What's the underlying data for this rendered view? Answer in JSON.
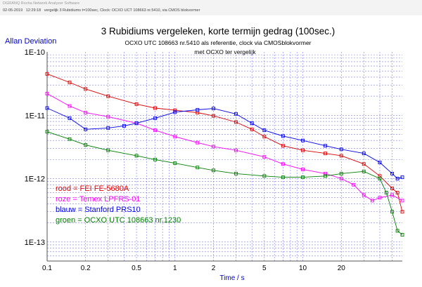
{
  "app_header": {
    "app_name": "DGRANQ Rocha Network Analyzer Software",
    "date": "02-05-2019",
    "time": "12:29:18",
    "info": "vergelijk 3 Rubidiums t=100sec, Clock: OCXO UCT 108663 nr.5410, via CMOS blokvormer"
  },
  "chart_data": {
    "type": "line",
    "title": "3 Rubidiums vergeleken, korte termijn gedrag (100sec.)",
    "subtitle_1": "OCXO UTC 108663 nr.5410 als referentie,  clock via CMOSblokvormer",
    "subtitle_2": "met OCXO ter vergelijk",
    "ylabel": "Allan Deviation",
    "xlabel": "Time / s",
    "xscale": "log",
    "yscale": "log",
    "xlim": [
      0.1,
      60
    ],
    "ylim": [
      5e-14,
      1e-10
    ],
    "grid": true,
    "x_ticks": [
      {
        "value": 0.1,
        "label": "0.1"
      },
      {
        "value": 0.2,
        "label": "0.2"
      },
      {
        "value": 0.5,
        "label": "0.5"
      },
      {
        "value": 1,
        "label": "1"
      },
      {
        "value": 2,
        "label": "2"
      },
      {
        "value": 5,
        "label": "5"
      },
      {
        "value": 10,
        "label": "10"
      },
      {
        "value": 20,
        "label": "20"
      }
    ],
    "y_ticks": [
      {
        "value": 1e-10,
        "label": "1E-10"
      },
      {
        "value": 1e-11,
        "label": "1E-11"
      },
      {
        "value": 1e-12,
        "label": "1E-12"
      },
      {
        "value": 1e-13,
        "label": "1E-13"
      }
    ],
    "legend_placement": "bottom-left",
    "series": [
      {
        "name": "rood  = FEI FE-5680A",
        "color": "#e00000",
        "points": [
          [
            0.1,
            4.5e-11
          ],
          [
            0.15,
            3.3e-11
          ],
          [
            0.2,
            2.6e-11
          ],
          [
            0.3,
            2e-11
          ],
          [
            0.5,
            1.5e-11
          ],
          [
            0.7,
            1.3e-11
          ],
          [
            1,
            1.2e-11
          ],
          [
            1.5,
            1.1e-11
          ],
          [
            2,
            9.8e-12
          ],
          [
            3,
            7.8e-12
          ],
          [
            4,
            6e-12
          ],
          [
            5,
            4.6e-12
          ],
          [
            7,
            3.3e-12
          ],
          [
            10,
            2.8e-12
          ],
          [
            15,
            2.5e-12
          ],
          [
            20,
            2.3e-12
          ],
          [
            30,
            1.7e-12
          ],
          [
            40,
            1.1e-12
          ],
          [
            50,
            7e-13
          ],
          [
            55,
            6e-13
          ],
          [
            60,
            3e-13
          ]
        ]
      },
      {
        "name": "roze  = Temex LPFRS-01",
        "color": "#ff00ff",
        "points": [
          [
            0.1,
            2.2e-11
          ],
          [
            0.15,
            1.4e-11
          ],
          [
            0.2,
            1.1e-11
          ],
          [
            0.3,
            9.5e-12
          ],
          [
            0.5,
            7.5e-12
          ],
          [
            0.7,
            5.8e-12
          ],
          [
            1,
            4.6e-12
          ],
          [
            1.5,
            3.7e-12
          ],
          [
            2,
            3.2e-12
          ],
          [
            3,
            2.8e-12
          ],
          [
            5,
            2.2e-12
          ],
          [
            7,
            1.7e-12
          ],
          [
            10,
            1.4e-12
          ],
          [
            15,
            1.2e-12
          ],
          [
            20,
            1e-12
          ],
          [
            25,
            8e-13
          ],
          [
            30,
            5.5e-13
          ],
          [
            35,
            4.5e-13
          ],
          [
            40,
            5e-13
          ],
          [
            50,
            5.5e-13
          ],
          [
            60,
            4.5e-13
          ]
        ]
      },
      {
        "name": "blauw = Stanford PRS10",
        "color": "#0000ee",
        "points": [
          [
            0.1,
            1.3e-11
          ],
          [
            0.15,
            9e-12
          ],
          [
            0.2,
            6e-12
          ],
          [
            0.3,
            6.3e-12
          ],
          [
            0.4,
            6.8e-12
          ],
          [
            0.5,
            7.5e-12
          ],
          [
            0.7,
            9e-12
          ],
          [
            1,
            1.12e-11
          ],
          [
            1.5,
            1.22e-11
          ],
          [
            2,
            1.28e-11
          ],
          [
            3,
            1.05e-11
          ],
          [
            4,
            7.5e-12
          ],
          [
            5,
            5.8e-12
          ],
          [
            7,
            4.7e-12
          ],
          [
            10,
            4e-12
          ],
          [
            15,
            3.3e-12
          ],
          [
            20,
            2.9e-12
          ],
          [
            30,
            2.5e-12
          ],
          [
            40,
            1.8e-12
          ],
          [
            50,
            1.2e-12
          ],
          [
            55,
            1e-12
          ],
          [
            60,
            1.05e-12
          ]
        ]
      },
      {
        "name": "groen = OCXO UTC 108663 nr.1230",
        "color": "#008000",
        "points": [
          [
            0.1,
            5.5e-12
          ],
          [
            0.15,
            4.2e-12
          ],
          [
            0.2,
            3.4e-12
          ],
          [
            0.3,
            2.8e-12
          ],
          [
            0.5,
            2.3e-12
          ],
          [
            0.7,
            2e-12
          ],
          [
            1,
            1.75e-12
          ],
          [
            1.5,
            1.5e-12
          ],
          [
            2,
            1.35e-12
          ],
          [
            3,
            1.2e-12
          ],
          [
            5,
            1.1e-12
          ],
          [
            7,
            1.05e-12
          ],
          [
            10,
            1.05e-12
          ],
          [
            15,
            1.1e-12
          ],
          [
            20,
            1.2e-12
          ],
          [
            30,
            1.3e-12
          ],
          [
            40,
            1e-12
          ],
          [
            45,
            6e-13
          ],
          [
            50,
            3e-13
          ],
          [
            55,
            1.5e-13
          ],
          [
            60,
            1.3e-13
          ]
        ]
      }
    ]
  }
}
